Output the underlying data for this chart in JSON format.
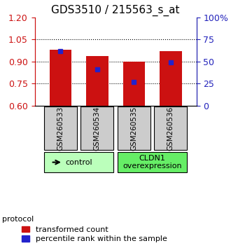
{
  "title": "GDS3510 / 215563_s_at",
  "samples": [
    "GSM260533",
    "GSM260534",
    "GSM260535",
    "GSM260536"
  ],
  "bar_bottom": 0.6,
  "red_bar_tops": [
    0.978,
    0.935,
    0.9,
    0.972
  ],
  "blue_marker_vals": [
    0.968,
    0.845,
    0.762,
    0.895
  ],
  "ylim_left": [
    0.6,
    1.2
  ],
  "ylim_right": [
    0,
    100
  ],
  "yticks_left": [
    0.6,
    0.75,
    0.9,
    1.05,
    1.2
  ],
  "yticks_right": [
    0,
    25,
    50,
    75,
    100
  ],
  "ytick_labels_right": [
    "0",
    "25",
    "50",
    "75",
    "100%"
  ],
  "hline_vals": [
    0.75,
    0.9,
    1.05
  ],
  "bar_color": "#cc1111",
  "blue_color": "#2222cc",
  "bar_width": 0.6,
  "group_labels": [
    "control",
    "CLDN1\noverexpression"
  ],
  "protocol_label": "protocol",
  "legend_red_label": "transformed count",
  "legend_blue_label": "percentile rank within the sample",
  "tick_color_left": "#cc1111",
  "tick_color_right": "#2222bb",
  "title_fontsize": 11,
  "tick_fontsize": 9,
  "legend_fontsize": 8,
  "group_box_color": "#cccccc",
  "control_color": "#bbffbb",
  "cldn1_color": "#66ee66"
}
